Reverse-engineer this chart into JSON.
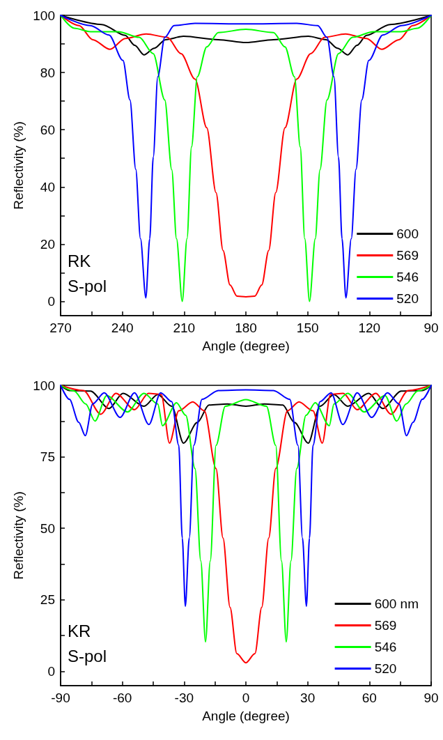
{
  "chart_data": [
    {
      "type": "line",
      "xlabel": "Angle (degree)",
      "ylabel": "Reflectivity (%)",
      "annotations": [
        "RK",
        "S-pol"
      ],
      "xlim": [
        270,
        90
      ],
      "xticks": [
        270,
        {
          "value": 255,
          "label": null
        },
        240,
        {
          "value": 225,
          "label": null
        },
        210,
        {
          "value": 195,
          "label": null
        },
        180,
        {
          "value": 165,
          "label": null
        },
        150,
        {
          "value": 135,
          "label": null
        },
        120,
        {
          "value": 105,
          "label": null
        },
        90
      ],
      "ylim": [
        -5,
        100
      ],
      "yticks": [
        0,
        {
          "value": 10,
          "label": null
        },
        20,
        {
          "value": 30,
          "label": null
        },
        40,
        {
          "value": 50,
          "label": null
        },
        60,
        {
          "value": 70,
          "label": null
        },
        80,
        {
          "value": 90,
          "label": null
        },
        100
      ],
      "legend": "bottom right",
      "marker": "none",
      "line_style": "solid",
      "grid": false,
      "series": [
        {
          "name": "600",
          "color": "#000000",
          "x": [
            270,
            250,
            238.6,
            234,
            229.5,
            224.5,
            219,
            210.3,
            193.4,
            180,
            166.6,
            149.7,
            141,
            135.5,
            130.5,
            126,
            121.4,
            110,
            90
          ],
          "values": [
            100,
            96.8,
            93,
            89.5,
            86.2,
            88.5,
            91.5,
            92.7,
            91.5,
            90.5,
            91.5,
            92.7,
            91.5,
            88.5,
            86.2,
            89.5,
            93,
            96.8,
            100
          ]
        },
        {
          "name": "569",
          "color": "#ff0000",
          "x": [
            270,
            261,
            254.4,
            246,
            238.6,
            228.4,
            218.2,
            211.5,
            204.7,
            199,
            194.5,
            191.1,
            187.7,
            184.3,
            180,
            175.7,
            172.3,
            168.9,
            165.5,
            161,
            155.3,
            148.5,
            141.8,
            131.6,
            121.4,
            114,
            105.6,
            99,
            90
          ],
          "values": [
            100,
            96.4,
            91.5,
            88.1,
            91.9,
            93.5,
            92.3,
            86.6,
            77.7,
            60.7,
            38,
            17.8,
            5.7,
            1.8,
            1.6,
            1.8,
            5.7,
            17.8,
            38,
            60.7,
            77.7,
            86.6,
            92.3,
            93.5,
            91.9,
            88.1,
            91.5,
            96.4,
            100
          ]
        },
        {
          "name": "546",
          "color": "#00ff00",
          "x": [
            270,
            263.4,
            255.5,
            242,
            231.8,
            225,
            219.4,
            216,
            213.7,
            210.9,
            208.6,
            206.4,
            203.6,
            199,
            193.4,
            180,
            166.6,
            161,
            156.4,
            153.6,
            151.4,
            149.1,
            146.3,
            144,
            140.6,
            135,
            128.2,
            118,
            104.5,
            96.6,
            90
          ],
          "values": [
            100,
            95.5,
            94.3,
            94.3,
            92.3,
            86.6,
            70.4,
            46,
            21.9,
            0,
            21.9,
            54,
            78.5,
            89,
            94,
            95.1,
            94,
            89,
            78.5,
            54,
            21.9,
            0,
            21.9,
            46,
            70.4,
            86.6,
            92.3,
            94.3,
            94.3,
            95.5,
            100
          ]
        },
        {
          "name": "520",
          "color": "#0000ff",
          "x": [
            270,
            255.5,
            246.5,
            239.7,
            236.3,
            233.5,
            231.2,
            228.6,
            226.7,
            225,
            222.8,
            219.4,
            214.9,
            204.7,
            180,
            155.3,
            145.1,
            140.6,
            137.2,
            135,
            133.3,
            131.4,
            128.8,
            126.5,
            123.7,
            120.3,
            113.5,
            104.5,
            90
          ],
          "values": [
            100,
            96.4,
            93.1,
            84.2,
            70.4,
            46.2,
            21.9,
            1.2,
            21.9,
            50.4,
            78.5,
            92.3,
            96.4,
            97.2,
            97,
            97.2,
            96.4,
            92.3,
            78.5,
            50.4,
            21.9,
            1.2,
            21.9,
            46.2,
            70.4,
            84.2,
            93.1,
            96.4,
            100
          ]
        }
      ]
    },
    {
      "type": "line",
      "xlabel": "Angle (degree)",
      "ylabel": "Reflectivity (%)",
      "annotations": [
        "KR",
        "S-pol"
      ],
      "xlim": [
        -90,
        90
      ],
      "xticks": [
        -90,
        {
          "value": -75,
          "label": null
        },
        -60,
        {
          "value": -45,
          "label": null
        },
        -30,
        {
          "value": -15,
          "label": null
        },
        0,
        {
          "value": 15,
          "label": null
        },
        30,
        {
          "value": 45,
          "label": null
        },
        60,
        {
          "value": 75,
          "label": null
        },
        90
      ],
      "ylim": [
        -5,
        100
      ],
      "yticks": [
        0,
        {
          "value": 12.5,
          "label": null
        },
        25,
        {
          "value": 37.5,
          "label": null
        },
        50,
        {
          "value": 62.5,
          "label": null
        },
        75,
        {
          "value": 87.5,
          "label": null
        },
        100
      ],
      "legend": "bottom right",
      "marker": "none",
      "line_style": "solid",
      "grid": false,
      "series": [
        {
          "name": "600 nm",
          "color": "#000000",
          "x": [
            -90,
            -85.7,
            -75.5,
            -66.5,
            -59.7,
            -49.5,
            -42.8,
            -36,
            -30.3,
            -23.6,
            -17.9,
            -8.9,
            0,
            8.9,
            17.9,
            23.6,
            30.3,
            36,
            42.8,
            49.5,
            59.7,
            66.5,
            75.5,
            85.7,
            90
          ],
          "values": [
            100,
            98.2,
            98,
            91.9,
            97.2,
            92.7,
            96.8,
            92.7,
            79.8,
            87,
            93.1,
            93.5,
            92.7,
            93.5,
            93.1,
            87,
            79.8,
            92.7,
            96.8,
            92.7,
            97.2,
            91.9,
            98,
            98.2,
            100
          ]
        },
        {
          "name": "569",
          "color": "#ff0000",
          "x": [
            -90,
            -78.9,
            -70.5,
            -63.1,
            -54.1,
            -47.3,
            -41.1,
            -37.1,
            -32.6,
            -25.8,
            -20.2,
            -14.5,
            -11.1,
            -7.7,
            -4.4,
            0,
            4.4,
            7.7,
            11.1,
            14.5,
            20.2,
            25.8,
            32.6,
            37.1,
            41.1,
            47.3,
            54.1,
            63.1,
            70.5,
            78.9,
            90
          ],
          "values": [
            100,
            98.2,
            89.9,
            97.2,
            91.5,
            97.2,
            96.8,
            79.8,
            91.1,
            94.2,
            91.1,
            70.9,
            46.6,
            22.4,
            6.2,
            3,
            6.2,
            22.4,
            46.6,
            70.9,
            91.1,
            94.2,
            91.1,
            79.8,
            96.8,
            97.2,
            91.5,
            97.2,
            89.9,
            98.2,
            100
          ]
        },
        {
          "name": "546",
          "color": "#00ff00",
          "x": [
            -90,
            -83.4,
            -77.8,
            -73.3,
            -67.6,
            -57.5,
            -49.5,
            -42.8,
            -40.5,
            -33.7,
            -29.2,
            -24.7,
            -21.9,
            -19.6,
            -17.3,
            -14.5,
            -10,
            0,
            10,
            14.5,
            17.3,
            19.6,
            21.9,
            24.7,
            29.2,
            33.7,
            40.5,
            42.8,
            49.5,
            57.5,
            67.6,
            73.3,
            77.8,
            83.4,
            90
          ],
          "values": [
            100,
            98,
            93.5,
            87.5,
            96.4,
            90.7,
            97.2,
            93.5,
            85.9,
            93.9,
            89.5,
            70.9,
            38.6,
            10.3,
            38.6,
            79,
            92.7,
            95,
            92.7,
            79,
            38.6,
            10.3,
            38.6,
            70.9,
            89.5,
            93.9,
            85.9,
            93.5,
            97.2,
            90.7,
            96.4,
            87.5,
            93.5,
            98,
            100
          ]
        },
        {
          "name": "520",
          "color": "#0000ff",
          "x": [
            -90,
            -85.7,
            -81.2,
            -78,
            -74.4,
            -68.8,
            -61.1,
            -54.1,
            -47.1,
            -41.4,
            -36,
            -32.6,
            -30.9,
            -29.4,
            -27.5,
            -25.3,
            -21.3,
            -13.4,
            0,
            13.4,
            21.3,
            25.3,
            27.5,
            29.4,
            30.9,
            32.6,
            36,
            41.4,
            47.1,
            54.1,
            61.1,
            68.8,
            74.4,
            78,
            81.2,
            85.7,
            90
          ],
          "values": [
            100,
            95.1,
            87.1,
            82.4,
            93.5,
            97.4,
            88.8,
            97.4,
            86.3,
            97.4,
            94.3,
            79,
            46.6,
            22.8,
            46.6,
            79,
            95.1,
            98.2,
            98.4,
            98.2,
            95.1,
            79,
            46.6,
            22.8,
            46.6,
            79,
            94.3,
            97.4,
            86.3,
            97.4,
            88.8,
            97.4,
            93.5,
            82.4,
            87.1,
            95.1,
            100
          ]
        }
      ]
    }
  ]
}
